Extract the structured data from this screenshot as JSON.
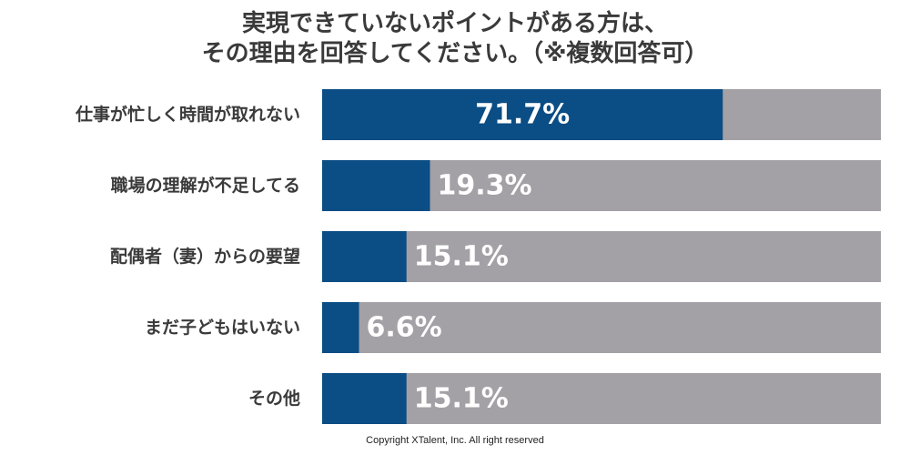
{
  "title_lines": [
    "実現できていないポイントがある方は、",
    "その理由を回答してください。（※複数回答可）"
  ],
  "copyright": "Copyright XTalent, Inc. All right reserved",
  "colors": {
    "bar": "#0b4d85",
    "track": "#a3a0a6",
    "value_text": "#ffffff",
    "label_text": "#3a3a3a"
  },
  "chart_data": {
    "type": "bar",
    "orientation": "horizontal",
    "categories": [
      "仕事が忙しく時間が取れない",
      "職場の理解が不足してる",
      "配偶者（妻）からの要望",
      "まだ子どもはいない",
      "その他"
    ],
    "values": [
      71.7,
      19.3,
      15.1,
      6.6,
      15.1
    ],
    "value_labels": [
      "71.7%",
      "19.3%",
      "15.1%",
      "6.6%",
      "15.1%"
    ],
    "unit": "%",
    "xlim": [
      0,
      100
    ],
    "grid": false,
    "legend": "none"
  }
}
